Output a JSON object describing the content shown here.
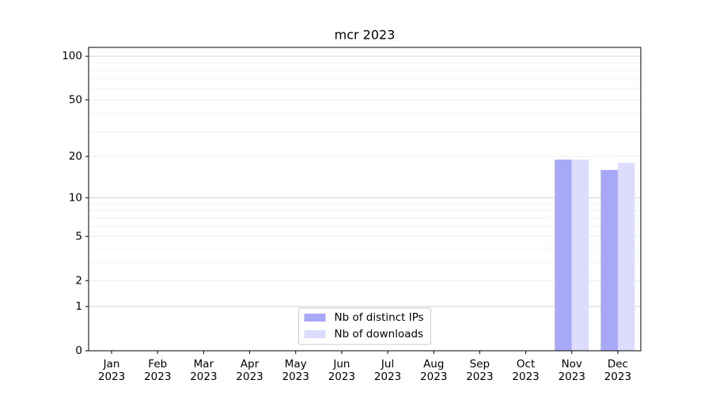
{
  "chart_data": {
    "type": "bar",
    "title": "mcr 2023",
    "categories": [
      "Jan\n2023",
      "Feb\n2023",
      "Mar\n2023",
      "Apr\n2023",
      "May\n2023",
      "Jun\n2023",
      "Jul\n2023",
      "Aug\n2023",
      "Sep\n2023",
      "Oct\n2023",
      "Nov\n2023",
      "Dec\n2023"
    ],
    "series": [
      {
        "name": "Nb of distinct IPs",
        "color": "#a8a8f8",
        "values": [
          0,
          0,
          0,
          0,
          0,
          0,
          0,
          0,
          0,
          0,
          19,
          16
        ]
      },
      {
        "name": "Nb of downloads",
        "color": "#dcdcfc",
        "values": [
          0,
          0,
          0,
          0,
          0,
          0,
          0,
          0,
          0,
          0,
          19,
          18
        ]
      }
    ],
    "yscale": "log1p",
    "ylim": [
      0,
      115
    ],
    "yticks": [
      0,
      1,
      2,
      5,
      10,
      20,
      50,
      100
    ],
    "y_minor_ticks": [
      3,
      4,
      6,
      7,
      8,
      9,
      30,
      40,
      60,
      70,
      80,
      90
    ],
    "grid": true,
    "legend": "lower center"
  }
}
